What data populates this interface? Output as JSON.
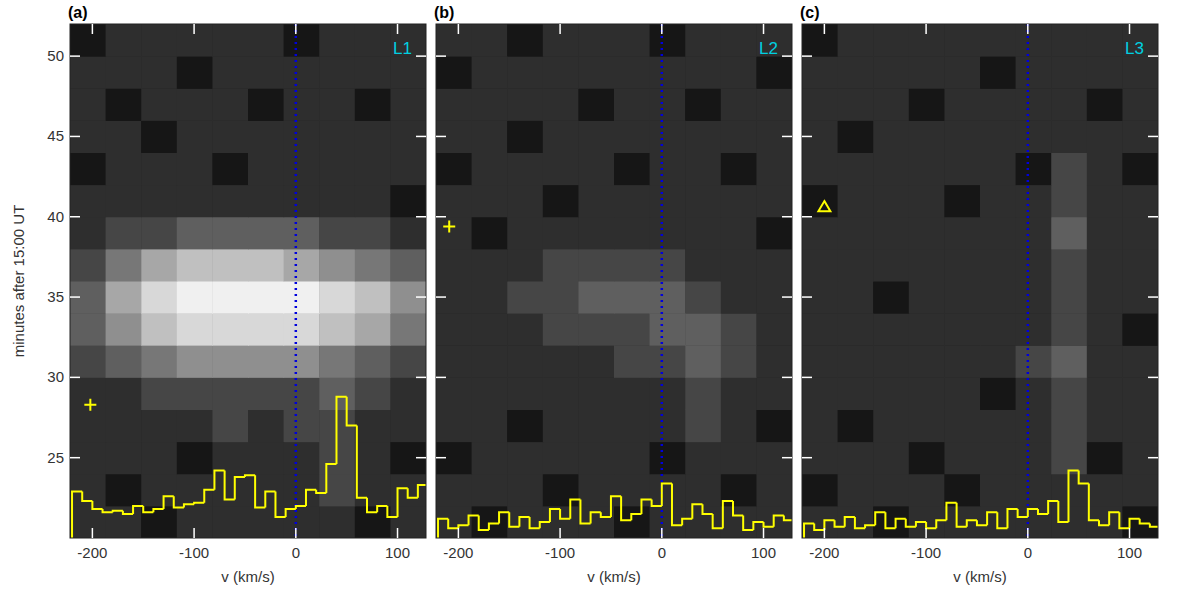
{
  "chart_data": [
    {
      "type": "heatmap",
      "title": "(a)",
      "label": {
        "text": "L1",
        "color": "#00d0e0"
      },
      "x_label": "v (km/s)",
      "y_label": "minutes after 15:00 UT",
      "xlim": [
        -222,
        128
      ],
      "ylim": [
        20,
        52
      ],
      "xticks": [
        -200,
        -100,
        0,
        100
      ],
      "yticks": [
        25,
        30,
        35,
        40,
        45,
        50
      ],
      "tick_labels": true,
      "x_edges": [
        -222,
        -187,
        -152,
        -117,
        -82,
        -47,
        -12,
        23,
        58,
        93,
        128
      ],
      "y_edges": [
        20,
        22,
        24,
        26,
        28,
        30,
        32,
        34,
        36,
        38,
        40,
        42,
        44,
        46,
        48,
        50,
        52
      ],
      "zlim": [
        0,
        9
      ],
      "cells": [
        [
          1,
          1,
          0,
          1,
          1,
          1,
          1,
          1,
          0,
          1
        ],
        [
          1,
          0,
          1,
          1,
          1,
          1,
          1,
          2,
          1,
          1
        ],
        [
          1,
          1,
          1,
          0,
          1,
          1,
          1,
          2,
          1,
          0
        ],
        [
          1,
          1,
          1,
          1,
          2,
          1,
          2,
          2,
          1,
          1
        ],
        [
          1,
          1,
          2,
          2,
          2,
          2,
          2,
          3,
          2,
          1
        ],
        [
          2,
          3,
          4,
          5,
          5,
          5,
          5,
          4,
          3,
          2
        ],
        [
          3,
          5,
          7,
          8,
          8,
          8,
          8,
          7,
          6,
          4
        ],
        [
          3,
          6,
          8,
          9,
          9,
          9,
          9,
          8,
          7,
          5
        ],
        [
          2,
          4,
          6,
          7,
          7,
          7,
          6,
          5,
          4,
          3
        ],
        [
          1,
          2,
          2,
          3,
          3,
          3,
          3,
          2,
          2,
          1
        ],
        [
          1,
          1,
          1,
          1,
          1,
          1,
          1,
          1,
          1,
          0
        ],
        [
          0,
          1,
          1,
          1,
          0,
          1,
          1,
          1,
          1,
          1
        ],
        [
          1,
          1,
          0,
          1,
          1,
          1,
          1,
          1,
          1,
          1
        ],
        [
          1,
          0,
          1,
          1,
          1,
          0,
          1,
          1,
          0,
          1
        ],
        [
          1,
          1,
          1,
          0,
          1,
          1,
          1,
          1,
          1,
          1
        ],
        [
          0,
          1,
          1,
          1,
          1,
          1,
          0,
          1,
          1,
          1
        ]
      ],
      "series": [
        {
          "type": "step",
          "color": "#ffff00",
          "bins": [
            -220,
            -210,
            -200,
            -190,
            -180,
            -170,
            -160,
            -150,
            -140,
            -130,
            -120,
            -110,
            -100,
            -90,
            -80,
            -70,
            -60,
            -50,
            -40,
            -30,
            -20,
            -10,
            0,
            10,
            20,
            30,
            40,
            50,
            60,
            70,
            80,
            90,
            100,
            110,
            120,
            130
          ],
          "values": [
            22.9,
            22.3,
            21.8,
            21.6,
            21.7,
            21.5,
            22.0,
            21.6,
            21.8,
            22.6,
            21.9,
            22.1,
            22.2,
            23.0,
            24.2,
            22.4,
            23.8,
            23.9,
            21.9,
            22.9,
            21.3,
            21.8,
            22.0,
            23.0,
            22.8,
            24.6,
            28.8,
            27.0,
            22.5,
            21.6,
            22.0,
            21.3,
            23.1,
            22.5,
            23.3
          ]
        }
      ],
      "ref_line": {
        "x": 0,
        "color": "#0000dd",
        "line_style": "dotted"
      },
      "markers": [
        {
          "x": -202,
          "y": 28.3,
          "marker": "plus",
          "color": "#ffff00"
        }
      ]
    },
    {
      "type": "heatmap",
      "title": "(b)",
      "label": {
        "text": "L2",
        "color": "#00d0e0"
      },
      "x_label": "v (km/s)",
      "xlim": [
        -222,
        128
      ],
      "ylim": [
        20,
        52
      ],
      "xticks": [
        -200,
        -100,
        0,
        100
      ],
      "yticks": [
        25,
        30,
        35,
        40,
        45,
        50
      ],
      "tick_labels": "x",
      "x_edges": [
        -222,
        -187,
        -152,
        -117,
        -82,
        -47,
        -12,
        23,
        58,
        93,
        128
      ],
      "y_edges": [
        20,
        22,
        24,
        26,
        28,
        30,
        32,
        34,
        36,
        38,
        40,
        42,
        44,
        46,
        48,
        50,
        52
      ],
      "zlim": [
        0,
        9
      ],
      "cells": [
        [
          1,
          0,
          1,
          1,
          1,
          0,
          1,
          1,
          1,
          1
        ],
        [
          1,
          1,
          1,
          0,
          1,
          1,
          1,
          1,
          0,
          1
        ],
        [
          0,
          1,
          1,
          1,
          1,
          1,
          0,
          1,
          1,
          1
        ],
        [
          1,
          1,
          0,
          1,
          1,
          1,
          1,
          2,
          1,
          0
        ],
        [
          1,
          1,
          1,
          1,
          1,
          1,
          1,
          2,
          1,
          1
        ],
        [
          1,
          1,
          1,
          1,
          1,
          2,
          2,
          3,
          2,
          1
        ],
        [
          1,
          1,
          1,
          2,
          2,
          2,
          3,
          3,
          2,
          1
        ],
        [
          1,
          1,
          2,
          2,
          3,
          3,
          3,
          2,
          1,
          1
        ],
        [
          1,
          1,
          1,
          2,
          2,
          2,
          2,
          1,
          1,
          1
        ],
        [
          1,
          0,
          1,
          1,
          1,
          1,
          1,
          1,
          1,
          0
        ],
        [
          1,
          1,
          1,
          0,
          1,
          1,
          1,
          1,
          1,
          1
        ],
        [
          0,
          1,
          1,
          1,
          1,
          0,
          1,
          1,
          0,
          1
        ],
        [
          1,
          1,
          0,
          1,
          1,
          1,
          1,
          1,
          1,
          1
        ],
        [
          1,
          1,
          1,
          1,
          0,
          1,
          1,
          0,
          1,
          1
        ],
        [
          0,
          1,
          1,
          1,
          1,
          1,
          1,
          1,
          1,
          0
        ],
        [
          1,
          1,
          0,
          1,
          1,
          1,
          0,
          1,
          1,
          1
        ]
      ],
      "series": [
        {
          "type": "step",
          "color": "#ffff00",
          "bins": [
            -220,
            -210,
            -200,
            -190,
            -180,
            -170,
            -160,
            -150,
            -140,
            -130,
            -120,
            -110,
            -100,
            -90,
            -80,
            -70,
            -60,
            -50,
            -40,
            -30,
            -20,
            -10,
            0,
            10,
            20,
            30,
            40,
            50,
            60,
            70,
            80,
            90,
            100,
            110,
            120,
            130
          ],
          "values": [
            21.2,
            20.6,
            20.8,
            21.4,
            20.5,
            20.9,
            21.6,
            20.7,
            21.3,
            20.6,
            21.0,
            21.8,
            21.2,
            22.4,
            20.9,
            21.6,
            21.3,
            22.6,
            21.1,
            21.5,
            22.4,
            22.0,
            23.4,
            20.8,
            21.2,
            22.1,
            21.5,
            20.6,
            22.3,
            21.4,
            20.5,
            21.0,
            20.7,
            21.4,
            21.1
          ]
        }
      ],
      "ref_line": {
        "x": 0,
        "color": "#0000dd",
        "line_style": "dotted"
      },
      "markers": [
        {
          "x": -209,
          "y": 39.4,
          "marker": "plus",
          "color": "#ffff00"
        }
      ]
    },
    {
      "type": "heatmap",
      "title": "(c)",
      "label": {
        "text": "L3",
        "color": "#00d0e0"
      },
      "x_label": "v (km/s)",
      "xlim": [
        -222,
        128
      ],
      "ylim": [
        20,
        52
      ],
      "xticks": [
        -200,
        -100,
        0,
        100
      ],
      "yticks": [
        25,
        30,
        35,
        40,
        45,
        50
      ],
      "tick_labels": "x",
      "x_edges": [
        -222,
        -187,
        -152,
        -117,
        -82,
        -47,
        -12,
        23,
        58,
        93,
        128
      ],
      "y_edges": [
        20,
        22,
        24,
        26,
        28,
        30,
        32,
        34,
        36,
        38,
        40,
        42,
        44,
        46,
        48,
        50,
        52
      ],
      "zlim": [
        0,
        9
      ],
      "cells": [
        [
          1,
          1,
          0,
          1,
          1,
          1,
          1,
          1,
          1,
          0
        ],
        [
          0,
          1,
          1,
          1,
          0,
          1,
          1,
          1,
          1,
          1
        ],
        [
          1,
          1,
          1,
          0,
          1,
          1,
          1,
          2,
          0,
          1
        ],
        [
          1,
          0,
          1,
          1,
          1,
          1,
          1,
          2,
          1,
          1
        ],
        [
          1,
          1,
          1,
          1,
          1,
          0,
          1,
          2,
          1,
          1
        ],
        [
          1,
          1,
          1,
          1,
          1,
          1,
          2,
          3,
          1,
          1
        ],
        [
          1,
          1,
          1,
          1,
          1,
          1,
          1,
          2,
          1,
          0
        ],
        [
          1,
          1,
          0,
          1,
          1,
          1,
          1,
          2,
          1,
          1
        ],
        [
          1,
          1,
          1,
          1,
          1,
          1,
          1,
          2,
          1,
          1
        ],
        [
          1,
          1,
          1,
          1,
          1,
          1,
          1,
          3,
          1,
          1
        ],
        [
          0,
          1,
          1,
          1,
          0,
          1,
          1,
          2,
          1,
          1
        ],
        [
          1,
          1,
          1,
          1,
          1,
          1,
          0,
          2,
          1,
          0
        ],
        [
          1,
          0,
          1,
          1,
          1,
          1,
          1,
          1,
          1,
          1
        ],
        [
          1,
          1,
          1,
          0,
          1,
          1,
          1,
          1,
          0,
          1
        ],
        [
          1,
          1,
          1,
          1,
          1,
          0,
          1,
          1,
          1,
          1
        ],
        [
          0,
          1,
          1,
          1,
          1,
          1,
          1,
          1,
          1,
          1
        ]
      ],
      "series": [
        {
          "type": "step",
          "color": "#ffff00",
          "bins": [
            -220,
            -210,
            -200,
            -190,
            -180,
            -170,
            -160,
            -150,
            -140,
            -130,
            -120,
            -110,
            -100,
            -90,
            -80,
            -70,
            -60,
            -50,
            -40,
            -30,
            -20,
            -10,
            0,
            10,
            20,
            30,
            40,
            50,
            60,
            70,
            80,
            90,
            100,
            110,
            120,
            130
          ],
          "values": [
            20.9,
            20.5,
            21.1,
            20.7,
            21.3,
            20.6,
            20.8,
            21.6,
            20.6,
            21.2,
            20.7,
            21.0,
            20.6,
            21.1,
            22.2,
            20.7,
            21.1,
            20.8,
            21.6,
            20.6,
            21.8,
            21.3,
            21.8,
            21.5,
            22.3,
            21.0,
            24.2,
            23.4,
            21.1,
            20.8,
            21.6,
            20.6,
            21.2,
            20.9,
            20.7
          ]
        }
      ],
      "ref_line": {
        "x": 0,
        "color": "#0000dd",
        "line_style": "dotted"
      },
      "markers": [
        {
          "x": -200,
          "y": 40.6,
          "marker": "triangle",
          "color": "#ffff00"
        }
      ]
    }
  ]
}
